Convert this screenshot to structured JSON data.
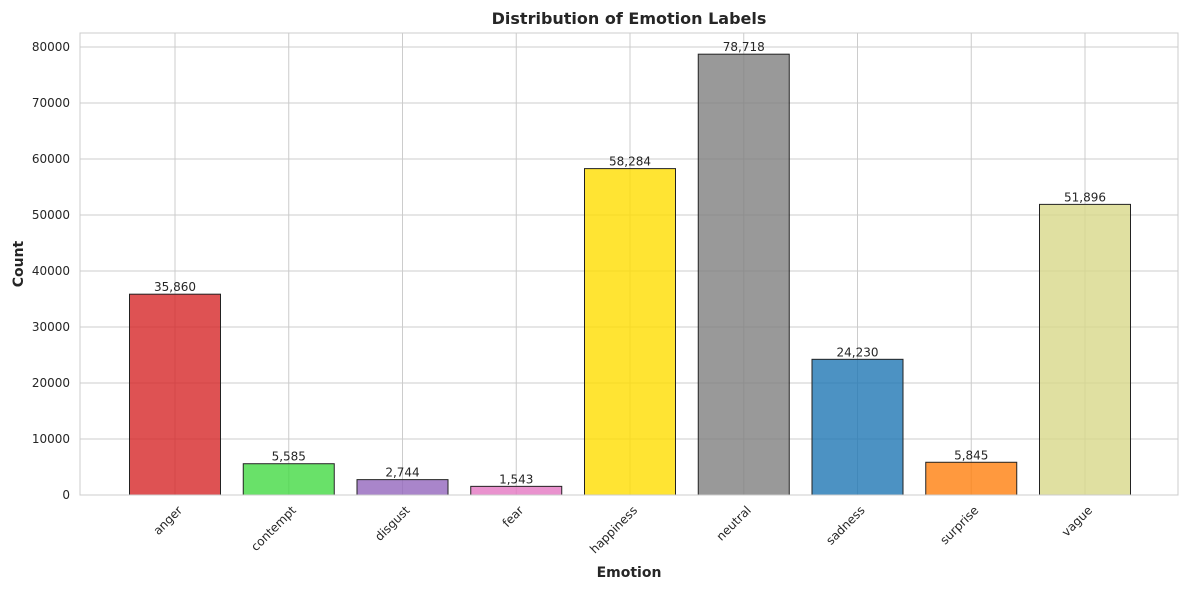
{
  "chart_data": {
    "type": "bar",
    "title": "Distribution of Emotion Labels",
    "xlabel": "Emotion",
    "ylabel": "Count",
    "ylim": [
      0,
      82500
    ],
    "yticks": [
      0,
      10000,
      20000,
      30000,
      40000,
      50000,
      60000,
      70000,
      80000
    ],
    "ytick_labels": [
      "0",
      "10000",
      "20000",
      "30000",
      "40000",
      "50000",
      "60000",
      "70000",
      "80000"
    ],
    "grid": true,
    "categories": [
      "anger",
      "contempt",
      "disgust",
      "fear",
      "happiness",
      "neutral",
      "sadness",
      "surprise",
      "vague"
    ],
    "values": [
      35860,
      5585,
      2744,
      1543,
      58284,
      78718,
      24230,
      5845,
      51896
    ],
    "value_labels": [
      "35,860",
      "5,585",
      "2,744",
      "1,543",
      "58,284",
      "78,718",
      "24,230",
      "5,845",
      "51,896"
    ],
    "colors": [
      "#d62728",
      "#44d944",
      "#9467bd",
      "#e377c2",
      "#ffdd00",
      "#7f7f7f",
      "#1f77b4",
      "#ff7f0e",
      "#d8d88a"
    ]
  }
}
